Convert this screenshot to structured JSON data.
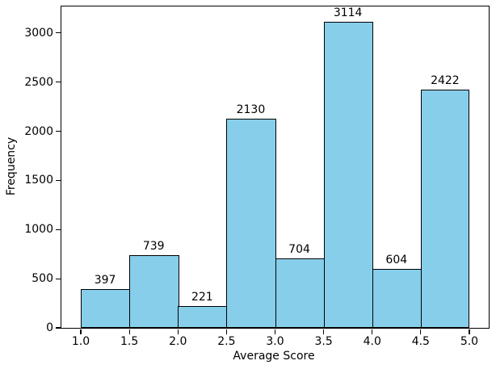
{
  "chart_data": {
    "type": "bar",
    "subtype": "histogram",
    "title": "",
    "xlabel": "Average Score",
    "ylabel": "Frequency",
    "bin_edges": [
      1.0,
      1.5,
      2.0,
      2.5,
      3.0,
      3.5,
      4.0,
      4.5,
      5.0
    ],
    "categories": [
      "1.0-1.5",
      "1.5-2.0",
      "2.0-2.5",
      "2.5-3.0",
      "3.0-3.5",
      "3.5-4.0",
      "4.0-4.5",
      "4.5-5.0"
    ],
    "values": [
      397,
      739,
      221,
      2130,
      704,
      3114,
      604,
      2422
    ],
    "bar_value_labels": [
      "397",
      "739",
      "221",
      "2130",
      "704",
      "3114",
      "604",
      "2422"
    ],
    "x_ticks": {
      "values": [
        1.0,
        1.5,
        2.0,
        2.5,
        3.0,
        3.5,
        4.0,
        4.5,
        5.0
      ],
      "labels": [
        "1.0",
        "1.5",
        "2.0",
        "2.5",
        "3.0",
        "3.5",
        "4.0",
        "4.5",
        "5.0"
      ]
    },
    "y_ticks": {
      "values": [
        0,
        500,
        1000,
        1500,
        2000,
        2500,
        3000
      ],
      "labels": [
        "0",
        "500",
        "1000",
        "1500",
        "2000",
        "2500",
        "3000"
      ]
    },
    "xlim": [
      0.8,
      5.2
    ],
    "ylim": [
      0,
      3270
    ],
    "grid": false,
    "legend": null,
    "colors": {
      "bar_fill": "#87CEEB",
      "bar_edge": "#000000",
      "text": "#000000",
      "background": "#FFFFFF"
    }
  }
}
